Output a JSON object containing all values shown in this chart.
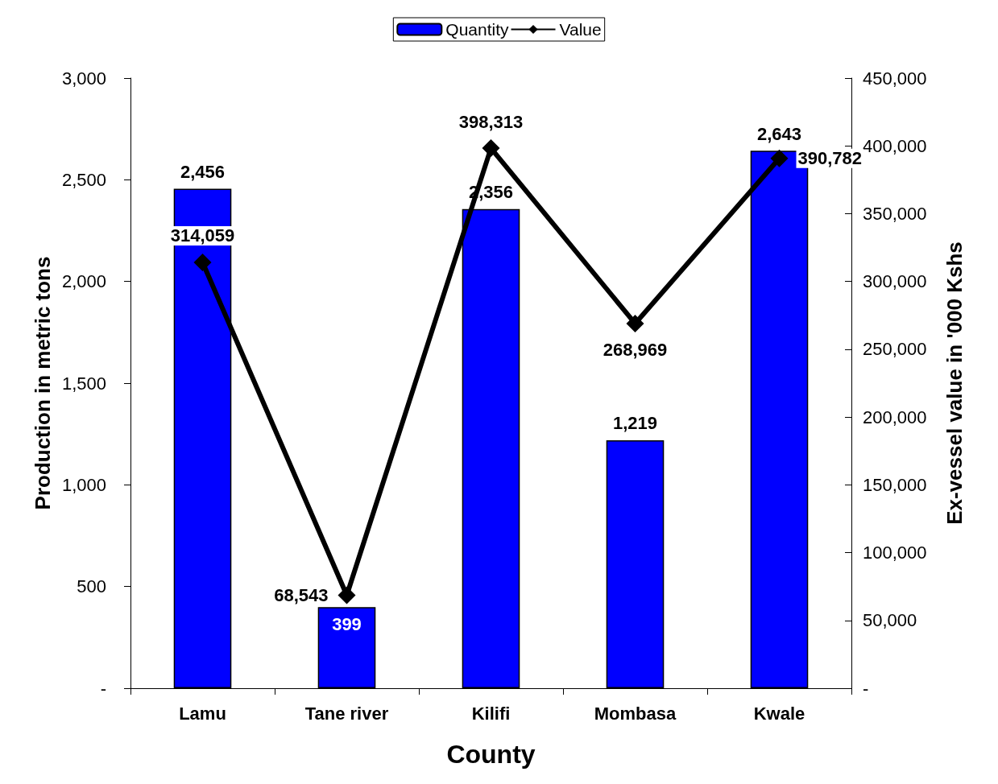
{
  "chart_data": {
    "type": "bar",
    "xlabel": "County",
    "ylabel": "Production in metric tons",
    "y2label": "Ex-vessel value in '000 Kshs",
    "categories": [
      "Lamu",
      "Tane river",
      "Kilifi",
      "Mombasa",
      "Kwale"
    ],
    "series": [
      {
        "name": "Quantity",
        "color": "#0000ff",
        "values": [
          2456,
          399,
          2356,
          1219,
          2643
        ],
        "value_labels": [
          "2,456",
          "399",
          "2,356",
          "1,219",
          "2,643"
        ]
      },
      {
        "name": "Value",
        "type": "line",
        "axis": "y2",
        "color": "#000000",
        "marker": "diamond",
        "line_style": "solid",
        "values": [
          314059,
          68543,
          398313,
          268969,
          390782
        ],
        "value_labels": [
          "314,059",
          "68,543",
          "398,313",
          "268,969",
          "390,782"
        ]
      }
    ],
    "ylim": [
      0,
      3000
    ],
    "yticks": [
      {
        "value": 0,
        "label": "-"
      },
      {
        "value": 500,
        "label": "500"
      },
      {
        "value": 1000,
        "label": "1,000"
      },
      {
        "value": 1500,
        "label": "1,500"
      },
      {
        "value": 2000,
        "label": "2,000"
      },
      {
        "value": 2500,
        "label": "2,500"
      },
      {
        "value": 3000,
        "label": "3,000"
      }
    ],
    "y2lim": [
      0,
      450000
    ],
    "y2ticks": [
      {
        "value": 0,
        "label": "-"
      },
      {
        "value": 50000,
        "label": "50,000"
      },
      {
        "value": 100000,
        "label": "100,000"
      },
      {
        "value": 150000,
        "label": "150,000"
      },
      {
        "value": 200000,
        "label": "200,000"
      },
      {
        "value": 250000,
        "label": "250,000"
      },
      {
        "value": 300000,
        "label": "300,000"
      },
      {
        "value": 350000,
        "label": "350,000"
      },
      {
        "value": 400000,
        "label": "400,000"
      },
      {
        "value": 450000,
        "label": "450,000"
      }
    ],
    "grid": false,
    "legend": "top"
  }
}
